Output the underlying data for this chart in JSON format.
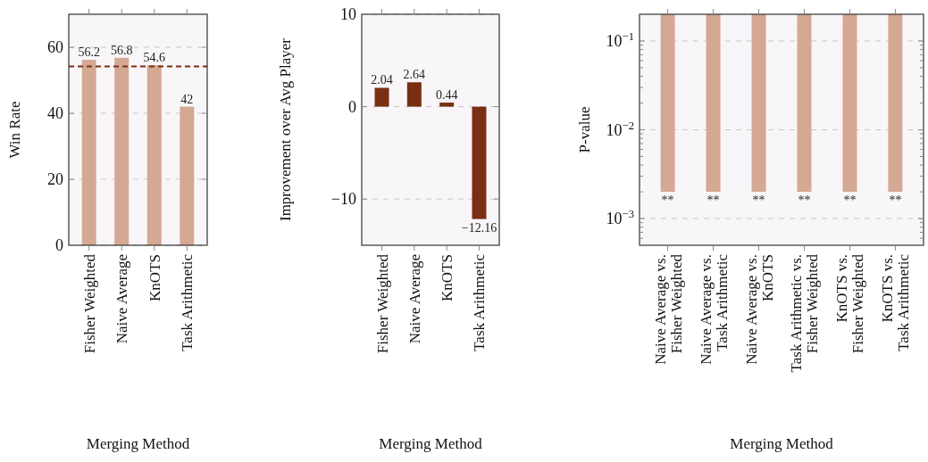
{
  "chart_data": [
    {
      "type": "bar",
      "ylabel": "Win Rate",
      "xlabel": "Merging Method",
      "categories": [
        "Fisher Weighted",
        "Naive Average",
        "KnOTS",
        "Task Arithmetic"
      ],
      "values": [
        56.2,
        56.8,
        54.6,
        42
      ],
      "color": "#d4a893",
      "ylim": [
        0,
        70
      ],
      "yticks": [
        0,
        20,
        40,
        60
      ],
      "grid": "y",
      "data_labels": true,
      "ref_lines": [
        {
          "axis": "y",
          "value": 54.2,
          "color": "#7a2e14",
          "line_style": "dashed"
        }
      ]
    },
    {
      "type": "bar",
      "ylabel": "Improvement over Avg Player",
      "xlabel": "Merging Method",
      "categories": [
        "Fisher Weighted",
        "Naive Average",
        "KnOTS",
        "Task Arithmetic"
      ],
      "values": [
        2.04,
        2.64,
        0.44,
        -12.16
      ],
      "color": "#7a2e14",
      "ylim": [
        -15,
        10
      ],
      "yticks": [
        -10,
        0,
        10
      ],
      "grid": "y",
      "data_labels": true
    },
    {
      "type": "bar",
      "ylabel": "P-value",
      "xlabel": "Merging Method",
      "log": "y",
      "categories": [
        "Naive Average vs.\nFisher Weighted",
        "Naive Average vs.\nTask Arithmetic",
        "Naive Average vs.\nKnOTS",
        "Task Arithmetic vs.\nFisher Weighted",
        "KnOTS vs.\nFisher Weighted",
        "KnOTS vs.\nTask Arithmetic"
      ],
      "values": [
        -0.198,
        -0.198,
        -0.198,
        -0.198,
        -0.198,
        -0.198
      ],
      "base": [
        0.2,
        0.2,
        0.2,
        0.2,
        0.2,
        0.2
      ],
      "value_labels": [
        "**",
        "**",
        "**",
        "**",
        "**",
        "**"
      ],
      "color": "#d4a893",
      "ylim": [
        0.0005,
        0.2
      ],
      "grid": "y",
      "yticks": [
        {
          "value": 0.0005,
          "label": null
        },
        {
          "value": 0.0006,
          "label": null
        },
        {
          "value": 0.0007,
          "label": null
        },
        {
          "value": 0.0008,
          "label": null
        },
        {
          "value": 0.0009,
          "label": null
        },
        {
          "value": 0.001,
          "label": "10$^{−3}$"
        },
        {
          "value": 0.002,
          "label": null
        },
        {
          "value": 0.003,
          "label": null
        },
        {
          "value": 0.004,
          "label": null
        },
        {
          "value": 0.005,
          "label": null
        },
        {
          "value": 0.006,
          "label": null
        },
        {
          "value": 0.007,
          "label": null
        },
        {
          "value": 0.008,
          "label": null
        },
        {
          "value": 0.009,
          "label": null
        },
        {
          "value": 0.01,
          "label": "10$^{−2}$"
        },
        {
          "value": 0.02,
          "label": null
        },
        {
          "value": 0.03,
          "label": null
        },
        {
          "value": 0.04,
          "label": null
        },
        {
          "value": 0.05,
          "label": null
        },
        {
          "value": 0.06,
          "label": null
        },
        {
          "value": 0.07,
          "label": null
        },
        {
          "value": 0.08,
          "label": null
        },
        {
          "value": 0.09,
          "label": null
        },
        {
          "value": 0.1,
          "label": "10$^{−1}$"
        },
        {
          "value": 0.2,
          "label": null
        }
      ]
    }
  ]
}
